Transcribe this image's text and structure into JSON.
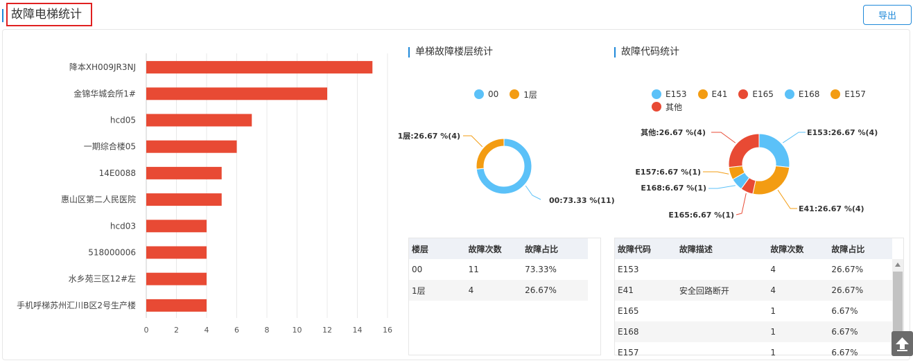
{
  "header": {
    "title": "故障电梯统计",
    "export_label": "导出"
  },
  "bar_chart": {
    "chart_data": {
      "type": "bar",
      "orientation": "horizontal",
      "categories": [
        "降本XH009JR3NJ",
        "金锦华城会所1#",
        "hcd05",
        "一期综合楼05",
        "14E0088",
        "惠山区第二人民医院",
        "hcd03",
        "518000006",
        "水乡苑三区12#左",
        "手机呼梯苏州汇川B区2号生产楼"
      ],
      "values": [
        15,
        12,
        7,
        6,
        5,
        5,
        4,
        4,
        4,
        4
      ],
      "xlim": [
        0,
        16
      ],
      "xticks": [
        0,
        2,
        4,
        6,
        8,
        10,
        12,
        14,
        16
      ],
      "grid": true,
      "color": "#e84a34"
    }
  },
  "floor_section": {
    "title": "单梯故障楼层统计",
    "legend": [
      {
        "name": "00",
        "color": "#5bc1f8"
      },
      {
        "name": "1层",
        "color": "#f39c12"
      }
    ],
    "chart_data": {
      "type": "pie",
      "donut": true,
      "slices": [
        {
          "name": "00",
          "value": 11,
          "percent": 73.33,
          "color": "#5bc1f8"
        },
        {
          "name": "1层",
          "value": 4,
          "percent": 26.67,
          "color": "#f39c12"
        }
      ],
      "labels": [
        "00:73.33 %(11)",
        "1层:26.67 %(4)"
      ]
    },
    "table": {
      "headers": [
        "楼层",
        "故障次数",
        "故障占比"
      ],
      "rows": [
        [
          "00",
          "11",
          "73.33%"
        ],
        [
          "1层",
          "4",
          "26.67%"
        ]
      ]
    }
  },
  "code_section": {
    "title": "故障代码统计",
    "legend": [
      {
        "name": "E153",
        "color": "#5bc1f8"
      },
      {
        "name": "E41",
        "color": "#f39c12"
      },
      {
        "name": "E165",
        "color": "#e84a34"
      },
      {
        "name": "E168",
        "color": "#5bc1f8"
      },
      {
        "name": "E157",
        "color": "#f39c12"
      },
      {
        "name": "其他",
        "color": "#e84a34"
      }
    ],
    "chart_data": {
      "type": "pie",
      "donut": true,
      "slices": [
        {
          "name": "E153",
          "value": 4,
          "percent": 26.67,
          "color": "#5bc1f8"
        },
        {
          "name": "E41",
          "value": 4,
          "percent": 26.67,
          "color": "#f39c12"
        },
        {
          "name": "E165",
          "value": 1,
          "percent": 6.67,
          "color": "#e84a34"
        },
        {
          "name": "E168",
          "value": 1,
          "percent": 6.67,
          "color": "#5bc1f8"
        },
        {
          "name": "E157",
          "value": 1,
          "percent": 6.67,
          "color": "#f39c12"
        },
        {
          "name": "其他",
          "value": 4,
          "percent": 26.67,
          "color": "#e84a34"
        }
      ],
      "labels": [
        "E153:26.67 %(4)",
        "E41:26.67 %(4)",
        "E165:6.67 %(1)",
        "E168:6.67 %(1)",
        "E157:6.67 %(1)",
        "其他:26.67 %(4)"
      ]
    },
    "table": {
      "headers": [
        "故障代码",
        "故障描述",
        "故障次数",
        "故障占比"
      ],
      "rows": [
        [
          "E153",
          "",
          "4",
          "26.67%"
        ],
        [
          "E41",
          "安全回路断开",
          "4",
          "26.67%"
        ],
        [
          "E165",
          "",
          "1",
          "6.67%"
        ],
        [
          "E168",
          "",
          "1",
          "6.67%"
        ],
        [
          "E157",
          "",
          "1",
          "6.67%"
        ]
      ]
    }
  }
}
